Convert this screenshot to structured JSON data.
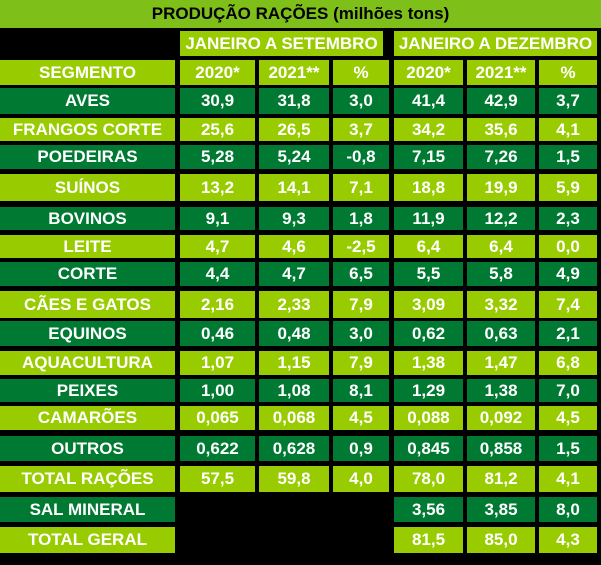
{
  "title": "PRODUÇÃO RAÇÕES (milhões tons)",
  "periods": [
    "JANEIRO A SETEMBRO",
    "JANEIRO A DEZEMBRO"
  ],
  "headers": [
    "SEGMENTO",
    "2020*",
    "2021**",
    "%",
    "2020*",
    "2021**",
    "%"
  ],
  "colors": {
    "light_row": "#99cc00",
    "dark_row": "#007a33",
    "title_bar": "#7fbf1a",
    "background": "#000000"
  },
  "rows": [
    {
      "segment": "AVES",
      "values": [
        "30,9",
        "31,8",
        "3,0",
        "41,4",
        "42,9",
        "3,7"
      ],
      "style": "dark"
    },
    {
      "segment": "FRANGOS CORTE",
      "values": [
        "25,6",
        "26,5",
        "3,7",
        "34,2",
        "35,6",
        "4,1"
      ],
      "style": "light"
    },
    {
      "segment": "POEDEIRAS",
      "values": [
        "5,28",
        "5,24",
        "-0,8",
        "7,15",
        "7,26",
        "1,5"
      ],
      "style": "dark"
    },
    {
      "segment": "SUÍNOS",
      "values": [
        "13,2",
        "14,1",
        "7,1",
        "18,8",
        "19,9",
        "5,9"
      ],
      "style": "light"
    },
    {
      "segment": "BOVINOS",
      "values": [
        "9,1",
        "9,3",
        "1,8",
        "11,9",
        "12,2",
        "2,3"
      ],
      "style": "dark"
    },
    {
      "segment": "LEITE",
      "values": [
        "4,7",
        "4,6",
        "-2,5",
        "6,4",
        "6,4",
        "0,0"
      ],
      "style": "light"
    },
    {
      "segment": "CORTE",
      "values": [
        "4,4",
        "4,7",
        "6,5",
        "5,5",
        "5,8",
        "4,9"
      ],
      "style": "dark"
    },
    {
      "segment": "CÃES E GATOS",
      "values": [
        "2,16",
        "2,33",
        "7,9",
        "3,09",
        "3,32",
        "7,4"
      ],
      "style": "light"
    },
    {
      "segment": "EQUINOS",
      "values": [
        "0,46",
        "0,48",
        "3,0",
        "0,62",
        "0,63",
        "2,1"
      ],
      "style": "dark"
    },
    {
      "segment": "AQUACULTURA",
      "values": [
        "1,07",
        "1,15",
        "7,9",
        "1,38",
        "1,47",
        "6,8"
      ],
      "style": "light"
    },
    {
      "segment": "PEIXES",
      "values": [
        "1,00",
        "1,08",
        "8,1",
        "1,29",
        "1,38",
        "7,0"
      ],
      "style": "dark"
    },
    {
      "segment": "CAMARÕES",
      "values": [
        "0,065",
        "0,068",
        "4,5",
        "0,088",
        "0,092",
        "4,5"
      ],
      "style": "light"
    },
    {
      "segment": "OUTROS",
      "values": [
        "0,622",
        "0,628",
        "0,9",
        "0,845",
        "0,858",
        "1,5"
      ],
      "style": "dark"
    },
    {
      "segment": "TOTAL RAÇÕES",
      "values": [
        "57,5",
        "59,8",
        "4,0",
        "78,0",
        "81,2",
        "4,1"
      ],
      "style": "light"
    },
    {
      "segment": "SAL MINERAL",
      "values": [
        "",
        "",
        "",
        "3,56",
        "3,85",
        "8,0"
      ],
      "style": "dark"
    },
    {
      "segment": "TOTAL GERAL",
      "values": [
        "",
        "",
        "",
        "81,5",
        "85,0",
        "4,3"
      ],
      "style": "light"
    }
  ]
}
